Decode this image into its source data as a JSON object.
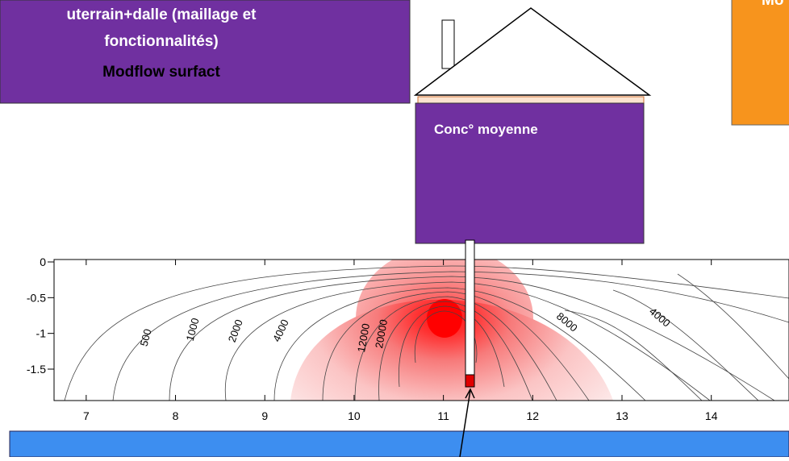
{
  "header": {
    "lines": [
      "uterrain+dalle  (maillage et",
      "fonctionnalités)",
      "Modflow surfact"
    ]
  },
  "right_box": {
    "text": "Mo"
  },
  "house": {
    "label": "Conc° moyenne"
  },
  "plot": {
    "xlim": [
      6.64,
      14.87
    ],
    "ylim": [
      -1.94,
      0.034
    ],
    "xticks": [
      7,
      8,
      9,
      10,
      11,
      12,
      13,
      14
    ],
    "yticks": [
      0,
      -0.5,
      -1,
      -1.5
    ],
    "contour_labels": [
      "500",
      "1000",
      "2000",
      "4000",
      "12000",
      "20000",
      "8000",
      "4000"
    ]
  }
}
